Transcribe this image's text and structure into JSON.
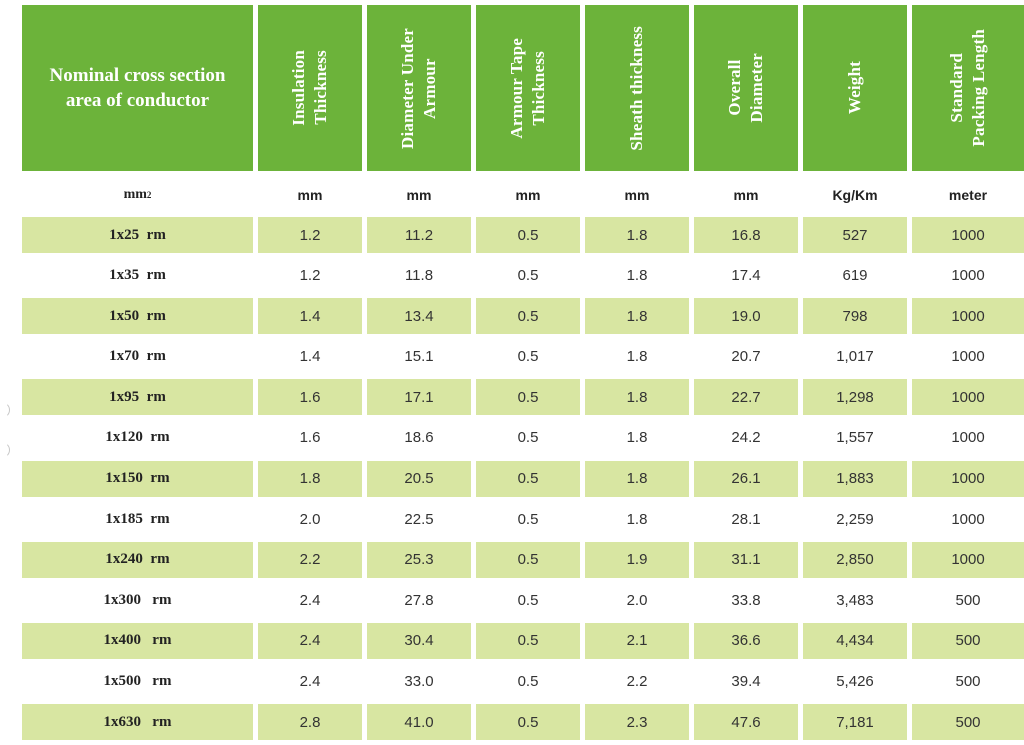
{
  "headers": [
    "Nominal cross section\narea of conductor",
    "Insulation\nThickness",
    "Diameter Under\nArmour",
    "Armour Tape\nThickness",
    "Sheath thickness",
    "Overall\nDiameter",
    "Weight",
    "Standard\nPacking Length"
  ],
  "units": {
    "size_base": "mm",
    "size_sup": "2",
    "insulation": "mm",
    "diameter_under_armour": "mm",
    "armour_tape": "mm",
    "sheath": "mm",
    "overall_diameter": "mm",
    "weight": "Kg/Km",
    "packing_length": "meter"
  },
  "rows": [
    [
      "1x25  rm",
      "1.2",
      "11.2",
      "0.5",
      "1.8",
      "16.8",
      "527",
      "1000"
    ],
    [
      "1x35  rm",
      "1.2",
      "11.8",
      "0.5",
      "1.8",
      "17.4",
      "619",
      "1000"
    ],
    [
      "1x50  rm",
      "1.4",
      "13.4",
      "0.5",
      "1.8",
      "19.0",
      "798",
      "1000"
    ],
    [
      "1x70  rm",
      "1.4",
      "15.1",
      "0.5",
      "1.8",
      "20.7",
      "1,017",
      "1000"
    ],
    [
      "1x95  rm",
      "1.6",
      "17.1",
      "0.5",
      "1.8",
      "22.7",
      "1,298",
      "1000"
    ],
    [
      "1x120  rm",
      "1.6",
      "18.6",
      "0.5",
      "1.8",
      "24.2",
      "1,557",
      "1000"
    ],
    [
      "1x150  rm",
      "1.8",
      "20.5",
      "0.5",
      "1.8",
      "26.1",
      "1,883",
      "1000"
    ],
    [
      "1x185  rm",
      "2.0",
      "22.5",
      "0.5",
      "1.8",
      "28.1",
      "2,259",
      "1000"
    ],
    [
      "1x240  rm",
      "2.2",
      "25.3",
      "0.5",
      "1.9",
      "31.1",
      "2,850",
      "1000"
    ],
    [
      "1x300   rm",
      "2.4",
      "27.8",
      "0.5",
      "2.0",
      "33.8",
      "3,483",
      "500"
    ],
    [
      "1x400   rm",
      "2.4",
      "30.4",
      "0.5",
      "2.1",
      "36.6",
      "4,434",
      "500"
    ],
    [
      "1x500   rm",
      "2.4",
      "33.0",
      "0.5",
      "2.2",
      "39.4",
      "5,426",
      "500"
    ],
    [
      "1x630   rm",
      "2.8",
      "41.0",
      "0.5",
      "2.3",
      "47.6",
      "7,181",
      "500"
    ]
  ],
  "colors": {
    "header_green": "#6cb33a",
    "row_shade": "#d8e6a2"
  }
}
